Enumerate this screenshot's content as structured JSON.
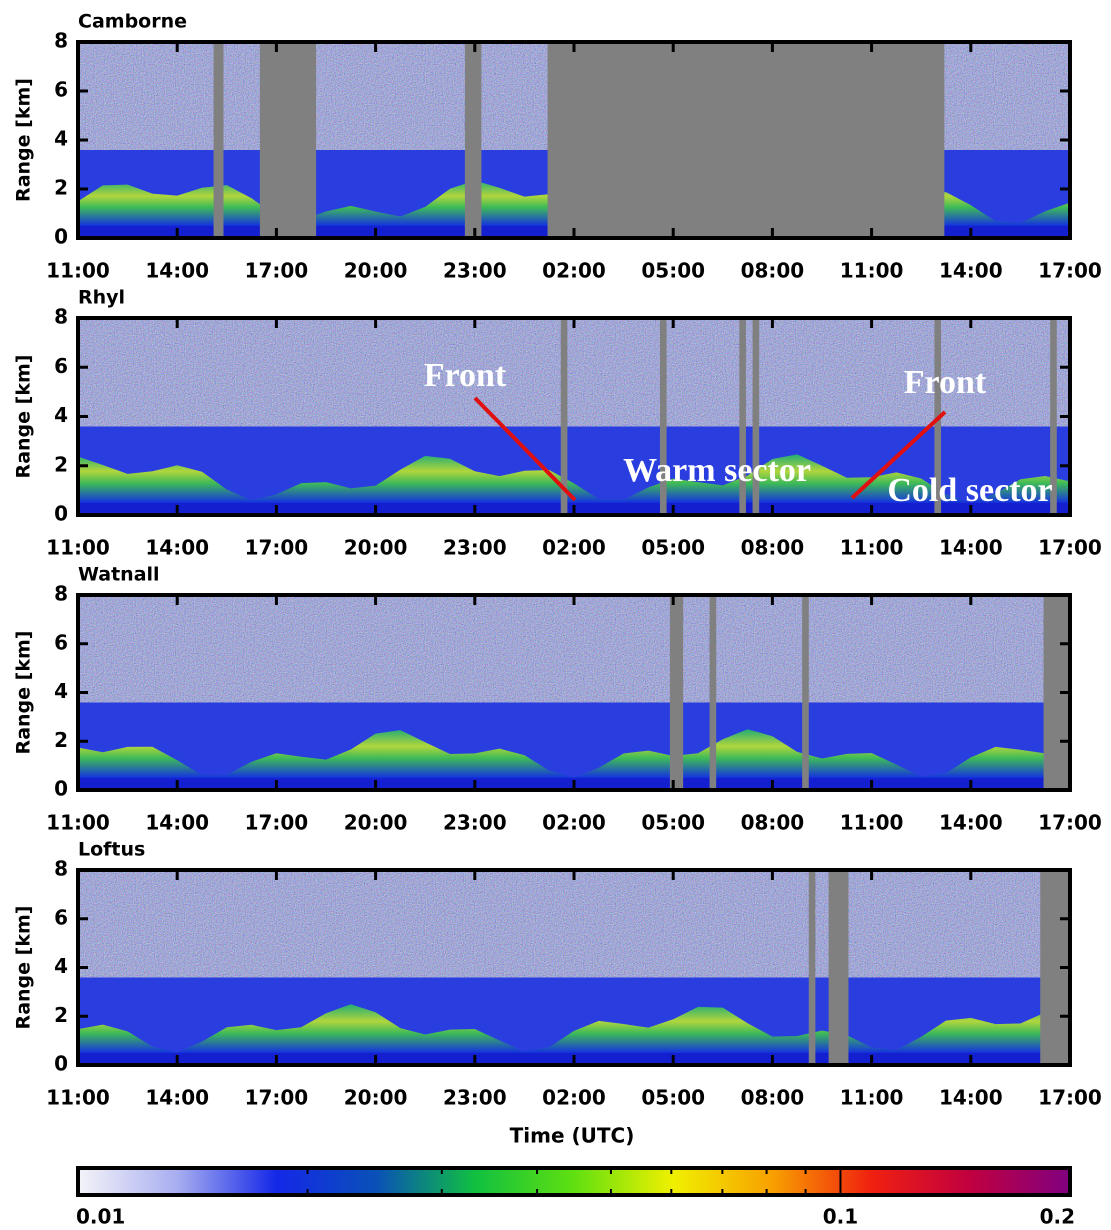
{
  "chart_data": {
    "type": "heatmap",
    "xlabel": "Time (UTC)",
    "ylabel": "Range [km]",
    "xlim": [
      0,
      30
    ],
    "xticks": [
      {
        "value": 0,
        "label": "11:00"
      },
      {
        "value": 3,
        "label": "14:00"
      },
      {
        "value": 6,
        "label": "17:00"
      },
      {
        "value": 9,
        "label": "20:00"
      },
      {
        "value": 12,
        "label": "23:00"
      },
      {
        "value": 15,
        "label": "02:00"
      },
      {
        "value": 18,
        "label": "05:00"
      },
      {
        "value": 21,
        "label": "08:00"
      },
      {
        "value": 24,
        "label": "11:00"
      },
      {
        "value": 27,
        "label": "14:00"
      },
      {
        "value": 30,
        "label": "17:00"
      }
    ],
    "ylim": [
      0,
      8
    ],
    "yticks": [
      0,
      2,
      4,
      6,
      8
    ],
    "panels": [
      {
        "title": "Camborne",
        "missing": [
          [
            4.1,
            4.4
          ],
          [
            5.5,
            7.2
          ],
          [
            11.7,
            12.2
          ],
          [
            14.2,
            26.2
          ]
        ]
      },
      {
        "title": "Rhyl",
        "missing": [
          [
            14.6,
            14.8
          ],
          [
            17.6,
            17.8
          ],
          [
            20.0,
            20.2
          ],
          [
            20.4,
            20.6
          ],
          [
            25.9,
            26.1
          ],
          [
            29.4,
            29.6
          ]
        ],
        "annotations": [
          "Front",
          "Front",
          "Warm sector",
          "Cold sector"
        ]
      },
      {
        "title": "Watnall",
        "missing": [
          [
            17.9,
            18.3
          ],
          [
            19.1,
            19.3
          ],
          [
            21.9,
            22.1
          ],
          [
            29.2,
            30
          ]
        ]
      },
      {
        "title": "Loftus",
        "missing": [
          [
            22.1,
            22.3
          ],
          [
            22.7,
            23.3
          ],
          [
            29.1,
            30
          ]
        ]
      }
    ],
    "colorbar": {
      "scale": "log",
      "lim": [
        0.01,
        0.2
      ],
      "ticks": [
        0.01,
        0.1,
        0.2
      ],
      "minor_ticks": [
        0.02,
        0.03,
        0.04,
        0.05,
        0.06,
        0.07,
        0.08,
        0.09
      ],
      "colors": [
        "#f4f4f8",
        "#a8aef0",
        "#1428e8",
        "#0a50b8",
        "#10c040",
        "#60e010",
        "#f0f000",
        "#f8a000",
        "#f02010",
        "#c00040",
        "#800080"
      ]
    }
  }
}
